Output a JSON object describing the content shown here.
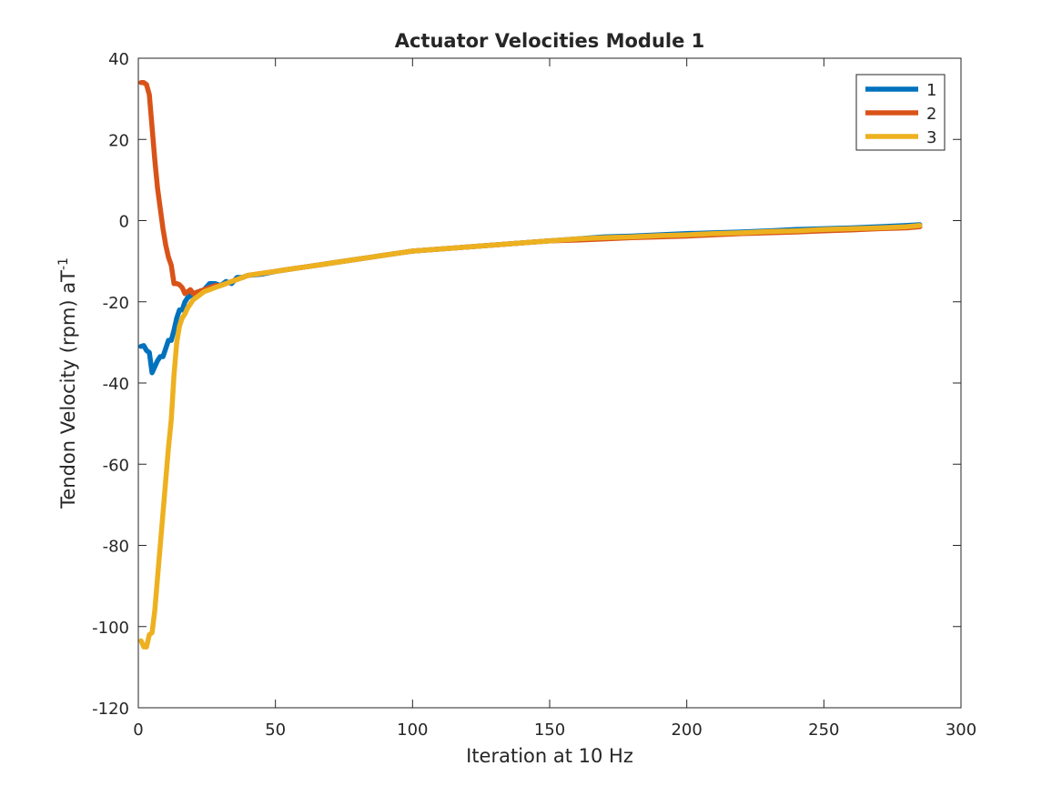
{
  "chart_data": {
    "type": "line",
    "title": "Actuator Velocities Module 1",
    "xlabel": "Iteration at 10 Hz",
    "ylabel": "Tendon Velocity (rpm) aT",
    "ylabel_superscript": "-1",
    "xlim": [
      0,
      300
    ],
    "ylim": [
      -120,
      40
    ],
    "x_ticks": [
      0,
      50,
      100,
      150,
      200,
      250,
      300
    ],
    "y_ticks": [
      -120,
      -100,
      -80,
      -60,
      -40,
      -20,
      0,
      20,
      40
    ],
    "grid": false,
    "legend_position": "top-right",
    "series": [
      {
        "name": "1",
        "color": "#0072BD",
        "points": [
          [
            1,
            -31
          ],
          [
            2,
            -30.8
          ],
          [
            3,
            -32
          ],
          [
            4,
            -32.5
          ],
          [
            5,
            -37.5
          ],
          [
            6,
            -36
          ],
          [
            7,
            -34.5
          ],
          [
            8,
            -33.5
          ],
          [
            9,
            -33.5
          ],
          [
            10,
            -31.5
          ],
          [
            11,
            -29.5
          ],
          [
            12,
            -29.5
          ],
          [
            13,
            -27
          ],
          [
            14,
            -24
          ],
          [
            15,
            -22
          ],
          [
            16,
            -22
          ],
          [
            17,
            -20
          ],
          [
            18,
            -19
          ],
          [
            19,
            -18.5
          ],
          [
            20,
            -18
          ],
          [
            22,
            -17.5
          ],
          [
            24,
            -17
          ],
          [
            26,
            -15.5
          ],
          [
            28,
            -15.5
          ],
          [
            30,
            -16
          ],
          [
            32,
            -15
          ],
          [
            34,
            -15.5
          ],
          [
            36,
            -14
          ],
          [
            38,
            -14
          ],
          [
            40,
            -13.5
          ],
          [
            45,
            -13.2
          ],
          [
            50,
            -12.5
          ],
          [
            55,
            -12
          ],
          [
            60,
            -11.5
          ],
          [
            65,
            -11
          ],
          [
            70,
            -10.5
          ],
          [
            75,
            -10
          ],
          [
            80,
            -9.5
          ],
          [
            85,
            -9
          ],
          [
            90,
            -8.5
          ],
          [
            95,
            -8
          ],
          [
            100,
            -7.5
          ],
          [
            110,
            -7
          ],
          [
            120,
            -6.5
          ],
          [
            130,
            -6
          ],
          [
            140,
            -5.5
          ],
          [
            150,
            -5
          ],
          [
            160,
            -4.5
          ],
          [
            170,
            -4
          ],
          [
            180,
            -3.8
          ],
          [
            190,
            -3.5
          ],
          [
            200,
            -3.2
          ],
          [
            210,
            -3
          ],
          [
            220,
            -2.8
          ],
          [
            230,
            -2.5
          ],
          [
            240,
            -2.2
          ],
          [
            250,
            -2
          ],
          [
            260,
            -1.8
          ],
          [
            270,
            -1.5
          ],
          [
            280,
            -1.2
          ],
          [
            285,
            -1
          ]
        ]
      },
      {
        "name": "2",
        "color": "#D95319",
        "points": [
          [
            1,
            34
          ],
          [
            2,
            34
          ],
          [
            3,
            33.5
          ],
          [
            4,
            31
          ],
          [
            5,
            23
          ],
          [
            6,
            15
          ],
          [
            7,
            8
          ],
          [
            8,
            3
          ],
          [
            9,
            -2
          ],
          [
            10,
            -6
          ],
          [
            11,
            -9
          ],
          [
            12,
            -11
          ],
          [
            13,
            -15.5
          ],
          [
            14,
            -15.5
          ],
          [
            15,
            -15.8
          ],
          [
            16,
            -16.5
          ],
          [
            17,
            -18
          ],
          [
            18,
            -17.5
          ],
          [
            19,
            -17
          ],
          [
            20,
            -18
          ],
          [
            22,
            -17.5
          ],
          [
            24,
            -17
          ],
          [
            26,
            -16.5
          ],
          [
            28,
            -16
          ],
          [
            30,
            -16
          ],
          [
            32,
            -15.5
          ],
          [
            34,
            -15
          ],
          [
            36,
            -14.5
          ],
          [
            38,
            -14
          ],
          [
            40,
            -13.5
          ],
          [
            45,
            -13
          ],
          [
            50,
            -12.5
          ],
          [
            55,
            -12
          ],
          [
            60,
            -11.5
          ],
          [
            65,
            -11
          ],
          [
            70,
            -10.5
          ],
          [
            75,
            -10
          ],
          [
            80,
            -9.5
          ],
          [
            85,
            -9
          ],
          [
            90,
            -8.5
          ],
          [
            95,
            -8
          ],
          [
            100,
            -7.5
          ],
          [
            110,
            -7
          ],
          [
            120,
            -6.5
          ],
          [
            130,
            -6
          ],
          [
            140,
            -5.5
          ],
          [
            150,
            -5
          ],
          [
            160,
            -4.8
          ],
          [
            170,
            -4.5
          ],
          [
            180,
            -4.2
          ],
          [
            190,
            -4
          ],
          [
            200,
            -3.8
          ],
          [
            210,
            -3.5
          ],
          [
            220,
            -3.2
          ],
          [
            230,
            -3
          ],
          [
            240,
            -2.8
          ],
          [
            250,
            -2.5
          ],
          [
            260,
            -2.3
          ],
          [
            270,
            -2
          ],
          [
            280,
            -1.8
          ],
          [
            285,
            -1.5
          ]
        ]
      },
      {
        "name": "3",
        "color": "#EDB120",
        "points": [
          [
            1,
            -103.5
          ],
          [
            2,
            -105
          ],
          [
            3,
            -105
          ],
          [
            4,
            -102
          ],
          [
            5,
            -101.5
          ],
          [
            6,
            -96
          ],
          [
            7,
            -88
          ],
          [
            8,
            -80
          ],
          [
            9,
            -72
          ],
          [
            10,
            -64
          ],
          [
            11,
            -56
          ],
          [
            12,
            -49
          ],
          [
            13,
            -38
          ],
          [
            14,
            -30
          ],
          [
            15,
            -26
          ],
          [
            16,
            -24
          ],
          [
            17,
            -23
          ],
          [
            18,
            -21.5
          ],
          [
            19,
            -20.5
          ],
          [
            20,
            -19.5
          ],
          [
            22,
            -18.5
          ],
          [
            24,
            -17.5
          ],
          [
            26,
            -17
          ],
          [
            28,
            -16.5
          ],
          [
            30,
            -16
          ],
          [
            32,
            -15.5
          ],
          [
            34,
            -15
          ],
          [
            36,
            -14.5
          ],
          [
            38,
            -14
          ],
          [
            40,
            -13.5
          ],
          [
            45,
            -13
          ],
          [
            50,
            -12.5
          ],
          [
            55,
            -12
          ],
          [
            60,
            -11.5
          ],
          [
            65,
            -11
          ],
          [
            70,
            -10.5
          ],
          [
            75,
            -10
          ],
          [
            80,
            -9.5
          ],
          [
            85,
            -9
          ],
          [
            90,
            -8.5
          ],
          [
            95,
            -8
          ],
          [
            100,
            -7.5
          ],
          [
            110,
            -7
          ],
          [
            120,
            -6.5
          ],
          [
            130,
            -6
          ],
          [
            140,
            -5.5
          ],
          [
            150,
            -5
          ],
          [
            160,
            -4.5
          ],
          [
            170,
            -4.2
          ],
          [
            180,
            -4
          ],
          [
            190,
            -3.7
          ],
          [
            200,
            -3.5
          ],
          [
            210,
            -3.2
          ],
          [
            220,
            -3
          ],
          [
            230,
            -2.7
          ],
          [
            240,
            -2.5
          ],
          [
            250,
            -2.2
          ],
          [
            260,
            -2
          ],
          [
            270,
            -1.8
          ],
          [
            280,
            -1.5
          ],
          [
            285,
            -1.2
          ]
        ]
      }
    ]
  }
}
